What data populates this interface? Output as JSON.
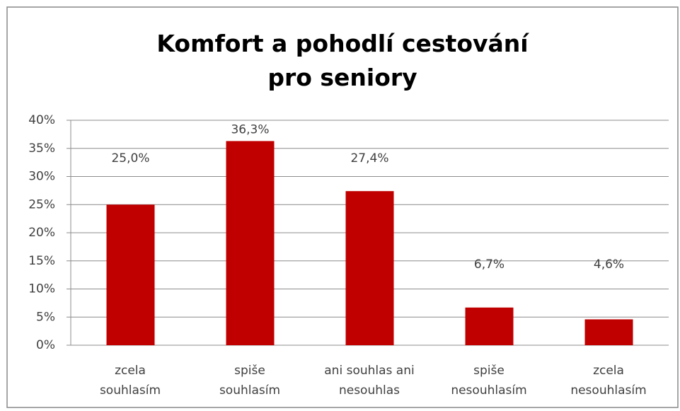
{
  "chart_data": {
    "type": "bar",
    "title": "Komfort a pohodlí cestování\npro seniory",
    "categories": [
      "zcela\nsouhlasím",
      "spiše\nsouhlasím",
      "ani souhlas ani\nnesouhlas",
      "spiše\nnesouhlasím",
      "zcela\nnesouhlasím"
    ],
    "values": [
      25.0,
      36.3,
      27.4,
      6.7,
      4.6
    ],
    "value_labels": [
      "25,0%",
      "36,3%",
      "27,4%",
      "6,7%",
      "4,6%"
    ],
    "color": "#c00000",
    "ylim": [
      0,
      40
    ],
    "yticks": [
      {
        "value": 0,
        "label": "0%"
      },
      {
        "value": 5,
        "label": "5%"
      },
      {
        "value": 10,
        "label": "10%"
      },
      {
        "value": 15,
        "label": "15%"
      },
      {
        "value": 20,
        "label": "20%"
      },
      {
        "value": 25,
        "label": "25%"
      },
      {
        "value": 30,
        "label": "30%"
      },
      {
        "value": 35,
        "label": "35%"
      },
      {
        "value": 40,
        "label": "40%"
      }
    ],
    "grid": true
  }
}
